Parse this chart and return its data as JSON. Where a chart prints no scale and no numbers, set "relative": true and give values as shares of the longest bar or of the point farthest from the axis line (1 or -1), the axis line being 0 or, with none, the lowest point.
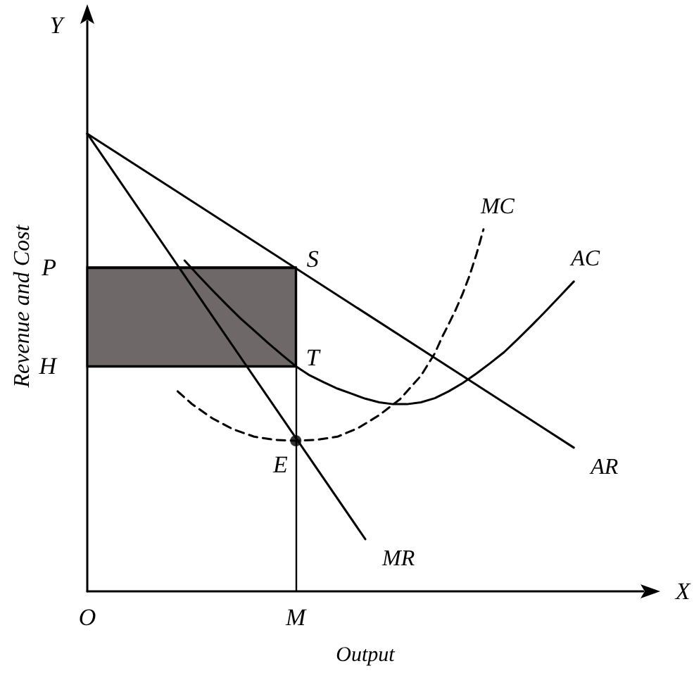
{
  "chart_data": {
    "type": "line",
    "relative": true,
    "xlabel": "Output",
    "ylabel": "Revenue and Cost",
    "legend": false,
    "grid": false,
    "categories": [
      "O",
      null,
      null,
      null,
      null,
      null,
      null,
      null,
      null,
      null,
      null,
      null,
      null,
      null,
      null,
      null,
      null,
      null,
      null,
      null,
      null,
      null,
      null,
      null,
      null,
      null,
      null,
      null,
      null,
      null,
      "M",
      null,
      null,
      null,
      null,
      null,
      null,
      null,
      null,
      null,
      null,
      null,
      null,
      null,
      null,
      null,
      null,
      null,
      null,
      null,
      null,
      null,
      null,
      null,
      null,
      null,
      null,
      null,
      null,
      null,
      null,
      null,
      null,
      null,
      null,
      null,
      null,
      null,
      null,
      null,
      null,
      null,
      null,
      null,
      null,
      null,
      null,
      null,
      null,
      null,
      null
    ],
    "series": [
      {
        "name": "AR",
        "color": "#000000",
        "line_style": "solid",
        "values": [
          1.0,
          null,
          null,
          null,
          null,
          null,
          null,
          null,
          null,
          null,
          null,
          null,
          null,
          null,
          null,
          null,
          null,
          null,
          null,
          null,
          null,
          null,
          null,
          null,
          null,
          null,
          null,
          null,
          null,
          null,
          null,
          null,
          null,
          null,
          null,
          null,
          null,
          null,
          null,
          null,
          null,
          null,
          null,
          null,
          null,
          null,
          null,
          null,
          null,
          null,
          null,
          null,
          null,
          null,
          null,
          null,
          null,
          null,
          null,
          null,
          null,
          null,
          null,
          null,
          null,
          null,
          null,
          null,
          null,
          null,
          0.314,
          null,
          null,
          null,
          null,
          null,
          null,
          null,
          null,
          null,
          null
        ]
      },
      {
        "name": "MR",
        "color": "#000000",
        "line_style": "solid",
        "values": [
          1.0,
          null,
          null,
          null,
          null,
          null,
          null,
          null,
          null,
          null,
          null,
          null,
          null,
          null,
          null,
          null,
          null,
          null,
          null,
          null,
          null,
          null,
          null,
          null,
          null,
          null,
          null,
          null,
          null,
          null,
          null,
          null,
          null,
          null,
          null,
          null,
          null,
          null,
          null,
          null,
          0.114,
          null,
          null,
          null,
          null,
          null,
          null,
          null,
          null,
          null,
          null,
          null,
          null,
          null,
          null,
          null,
          null,
          null,
          null,
          null,
          null,
          null,
          null,
          null,
          null,
          null,
          null,
          null,
          null,
          null,
          null,
          null,
          null,
          null,
          null,
          null,
          null,
          null,
          null,
          null,
          null
        ]
      },
      {
        "name": "AC",
        "color": "#000000",
        "line_style": "solid",
        "values": [
          null,
          null,
          null,
          null,
          null,
          null,
          null,
          null,
          null,
          null,
          null,
          null,
          null,
          null,
          0.723,
          null,
          0.69,
          null,
          0.658,
          null,
          0.627,
          null,
          0.597,
          null,
          0.57,
          null,
          0.543,
          null,
          0.517,
          null,
          0.492,
          null,
          0.472,
          null,
          0.457,
          null,
          0.443,
          null,
          0.432,
          null,
          0.421,
          null,
          0.413,
          null,
          0.409,
          null,
          0.409,
          null,
          0.413,
          null,
          0.422,
          null,
          0.437,
          null,
          0.455,
          null,
          0.476,
          null,
          0.499,
          null,
          0.523,
          null,
          0.552,
          null,
          0.582,
          null,
          0.613,
          null,
          0.645,
          null,
          0.677,
          null,
          null,
          null,
          null,
          null,
          null,
          null,
          null,
          null,
          null
        ]
      },
      {
        "name": "MC",
        "color": "#000000",
        "line_style": "dashed",
        "values": [
          null,
          null,
          null,
          null,
          null,
          null,
          null,
          null,
          null,
          null,
          null,
          null,
          null,
          0.437,
          null,
          0.41,
          null,
          null,
          0.378,
          null,
          null,
          0.354,
          null,
          null,
          0.338,
          null,
          null,
          0.331,
          null,
          null,
          0.329,
          null,
          null,
          0.331,
          null,
          null,
          0.338,
          null,
          null,
          0.357,
          null,
          null,
          0.385,
          null,
          null,
          0.42,
          null,
          null,
          0.471,
          null,
          0.52,
          0.554,
          0.584,
          0.615,
          0.65,
          0.69,
          0.737,
          0.791,
          null,
          null,
          null,
          null,
          null,
          null,
          null,
          null,
          null,
          null,
          null,
          null,
          null,
          null,
          null,
          null,
          null,
          null,
          null,
          null,
          null,
          null,
          null
        ]
      },
      {
        "type": "scatter",
        "marker": "circle",
        "color": "#000000",
        "x": [
          "M"
        ],
        "values": [
          0.329
        ]
      }
    ],
    "ref_lines": [
      {
        "axis": "y",
        "value": 0.708,
        "label": "P"
      },
      {
        "axis": "y",
        "value": 0.492,
        "label": "H"
      },
      {
        "axis": "x",
        "value": "M"
      }
    ],
    "bands": [
      {
        "axis": "y",
        "from": 0.492,
        "to": 0.708,
        "color": "#6e6868"
      }
    ],
    "annotations": [
      {
        "text": "S",
        "x": "M",
        "y": 0.708
      },
      {
        "text": "T",
        "x": "M",
        "y": 0.492
      },
      {
        "text": "E",
        "x": "M",
        "y": 0.329
      },
      "X",
      "Y"
    ]
  }
}
